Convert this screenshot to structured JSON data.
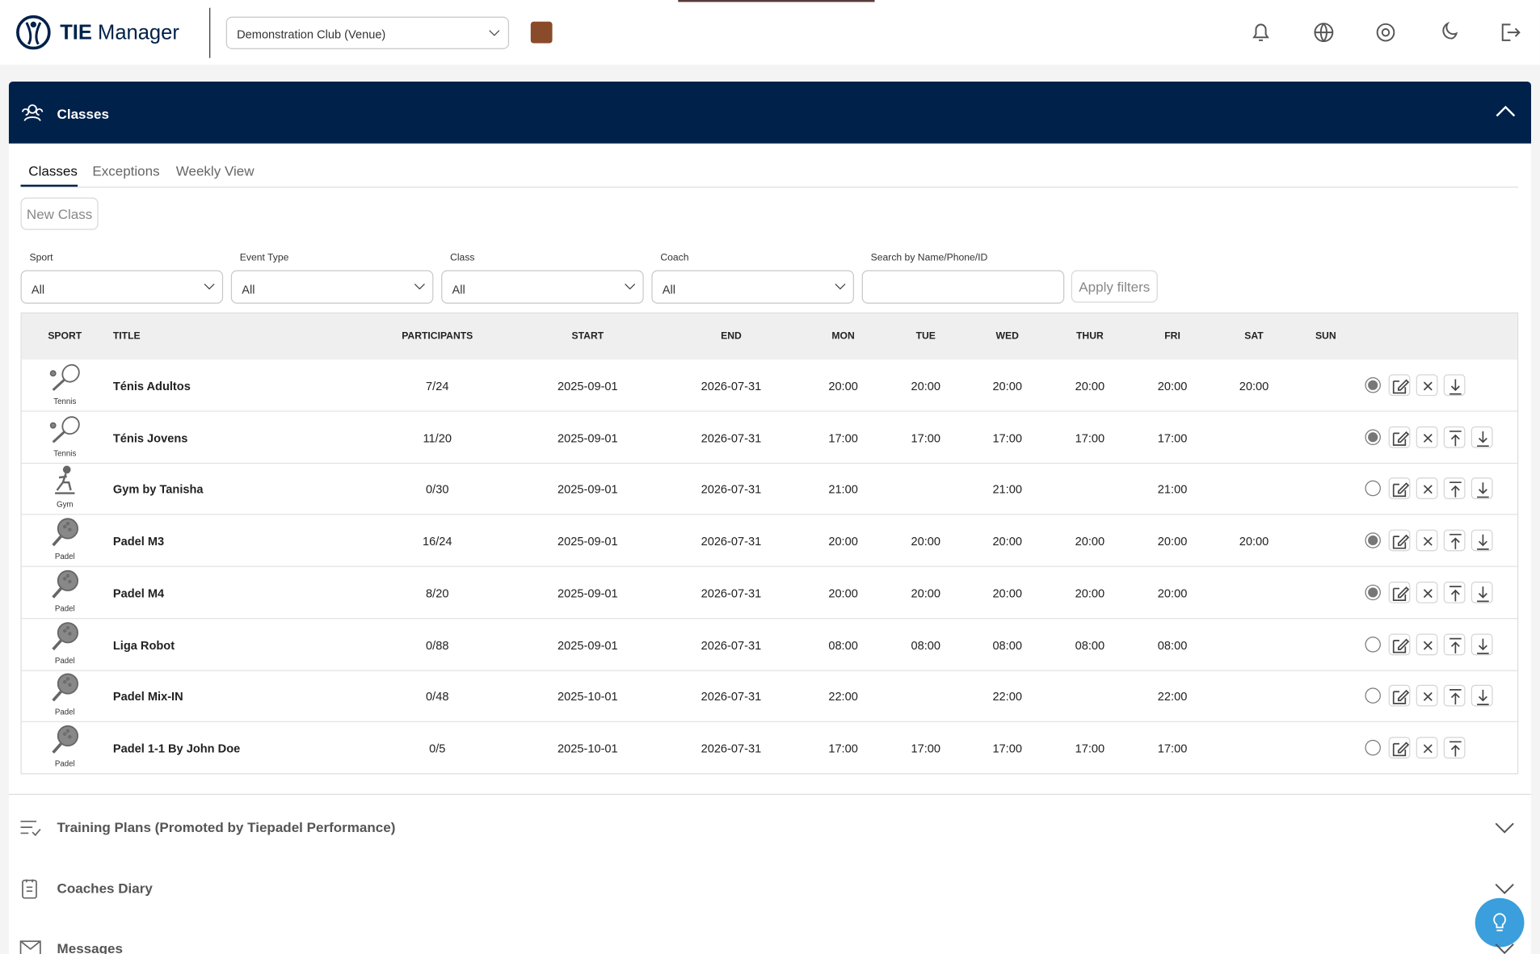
{
  "header": {
    "brand_bold": "TIE",
    "brand_rest": "Manager",
    "club": "Demonstration Club (Venue)"
  },
  "panel": {
    "title": "Classes"
  },
  "tabs": [
    "Classes",
    "Exceptions",
    "Weekly View"
  ],
  "active_tab": 0,
  "new_class": "New Class",
  "filters": [
    {
      "label": "Sport",
      "value": "All"
    },
    {
      "label": "Event Type",
      "value": "All"
    },
    {
      "label": "Class",
      "value": "All"
    },
    {
      "label": "Coach",
      "value": "All"
    },
    {
      "label": "Search by Name/Phone/ID"
    }
  ],
  "apply": "Apply filters",
  "table": {
    "columns": [
      "SPORT",
      "TITLE",
      "PARTICIPANTS",
      "START",
      "END",
      "MON",
      "TUE",
      "WED",
      "THUR",
      "FRI",
      "SAT",
      "SUN"
    ],
    "rows": [
      {
        "sport": "Tennis",
        "title": "Ténis Adultos",
        "participants": "7/24",
        "start": "2025-09-01",
        "end": "2026-07-31",
        "days": [
          "20:00",
          "20:00",
          "20:00",
          "20:00",
          "20:00",
          "20:00",
          null
        ],
        "active": true,
        "actions": [
          "edit",
          "delete",
          "download"
        ]
      },
      {
        "sport": "Tennis",
        "title": "Ténis Jovens",
        "participants": "11/20",
        "start": "2025-09-01",
        "end": "2026-07-31",
        "days": [
          "17:00",
          "17:00",
          "17:00",
          "17:00",
          "17:00",
          null,
          null
        ],
        "active": true,
        "actions": [
          "edit",
          "delete",
          "upload",
          "download"
        ]
      },
      {
        "sport": "Gym",
        "title": "Gym by Tanisha",
        "participants": "0/30",
        "start": "2025-09-01",
        "end": "2026-07-31",
        "days": [
          "21:00",
          null,
          "21:00",
          null,
          "21:00",
          null,
          null
        ],
        "active": false,
        "actions": [
          "edit",
          "delete",
          "upload",
          "download"
        ]
      },
      {
        "sport": "Padel",
        "title": "Padel M3",
        "participants": "16/24",
        "start": "2025-09-01",
        "end": "2026-07-31",
        "days": [
          "20:00",
          "20:00",
          "20:00",
          "20:00",
          "20:00",
          "20:00",
          null
        ],
        "active": true,
        "actions": [
          "edit",
          "delete",
          "upload",
          "download"
        ]
      },
      {
        "sport": "Padel",
        "title": "Padel M4",
        "participants": "8/20",
        "start": "2025-09-01",
        "end": "2026-07-31",
        "days": [
          "20:00",
          "20:00",
          "20:00",
          "20:00",
          "20:00",
          null,
          null
        ],
        "active": true,
        "actions": [
          "edit",
          "delete",
          "upload",
          "download"
        ]
      },
      {
        "sport": "Padel",
        "title": "Liga Robot",
        "participants": "0/88",
        "start": "2025-09-01",
        "end": "2026-07-31",
        "days": [
          "08:00",
          "08:00",
          "08:00",
          "08:00",
          "08:00",
          null,
          null
        ],
        "active": false,
        "actions": [
          "edit",
          "delete",
          "upload",
          "download"
        ]
      },
      {
        "sport": "Padel",
        "title": "Padel Mix-IN",
        "participants": "0/48",
        "start": "2025-10-01",
        "end": "2026-07-31",
        "days": [
          "22:00",
          null,
          "22:00",
          null,
          "22:00",
          null,
          null
        ],
        "active": false,
        "actions": [
          "edit",
          "delete",
          "upload",
          "download"
        ]
      },
      {
        "sport": "Padel",
        "title": "Padel 1-1 By John Doe",
        "participants": "0/5",
        "start": "2025-10-01",
        "end": "2026-07-31",
        "days": [
          "17:00",
          "17:00",
          "17:00",
          "17:00",
          "17:00",
          null,
          null
        ],
        "active": false,
        "actions": [
          "edit",
          "delete",
          "upload"
        ]
      }
    ]
  },
  "sections": [
    "Training Plans (Promoted by Tiepadel Performance)",
    "Coaches Diary",
    "Messages"
  ]
}
